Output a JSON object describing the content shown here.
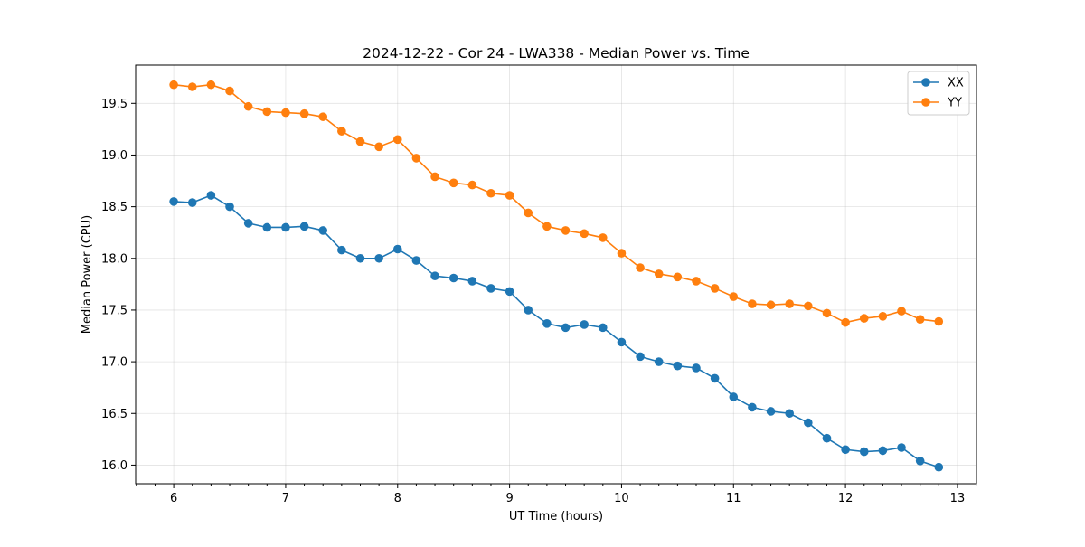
{
  "chart_data": {
    "type": "line",
    "title": "2024-12-22 - Cor 24 - LWA338 - Median Power vs. Time",
    "xlabel": "UT Time (hours)",
    "ylabel": "Median Power (CPU)",
    "xlim": [
      5.66,
      13.17
    ],
    "ylim": [
      15.82,
      19.87
    ],
    "xticks": [
      6,
      7,
      8,
      9,
      10,
      11,
      12,
      13
    ],
    "xtick_labels": [
      "6",
      "7",
      "8",
      "9",
      "10",
      "11",
      "12",
      "13"
    ],
    "yticks": [
      16.0,
      16.5,
      17.0,
      17.5,
      18.0,
      18.5,
      19.0,
      19.5
    ],
    "ytick_labels": [
      "16.0",
      "16.5",
      "17.0",
      "17.5",
      "18.0",
      "18.5",
      "19.0",
      "19.5"
    ],
    "grid": true,
    "legend_position": "top-right",
    "x": [
      6.0,
      6.1667,
      6.3333,
      6.5,
      6.6667,
      6.8333,
      7.0,
      7.1667,
      7.3333,
      7.5,
      7.6667,
      7.8333,
      8.0,
      8.1667,
      8.3333,
      8.5,
      8.6667,
      8.8333,
      9.0,
      9.1667,
      9.3333,
      9.5,
      9.6667,
      9.8333,
      10.0,
      10.1667,
      10.3333,
      10.5,
      10.6667,
      10.8333,
      11.0,
      11.1667,
      11.3333,
      11.5,
      11.6667,
      11.8333,
      12.0,
      12.1667,
      12.3333,
      12.5,
      12.6667,
      12.8333
    ],
    "series": [
      {
        "name": "XX",
        "color": "#1f77b4",
        "values": [
          18.55,
          18.54,
          18.61,
          18.5,
          18.34,
          18.3,
          18.3,
          18.31,
          18.27,
          18.08,
          18.0,
          18.0,
          18.09,
          17.98,
          17.83,
          17.81,
          17.78,
          17.71,
          17.68,
          17.5,
          17.37,
          17.33,
          17.36,
          17.33,
          17.19,
          17.05,
          17.0,
          16.96,
          16.94,
          16.84,
          16.66,
          16.56,
          16.52,
          16.5,
          16.41,
          16.26,
          16.15,
          16.13,
          16.14,
          16.17,
          16.04,
          15.98
        ]
      },
      {
        "name": "YY",
        "color": "#ff7f0e",
        "values": [
          19.68,
          19.66,
          19.68,
          19.62,
          19.47,
          19.42,
          19.41,
          19.4,
          19.37,
          19.23,
          19.13,
          19.08,
          19.15,
          18.97,
          18.79,
          18.73,
          18.71,
          18.63,
          18.61,
          18.44,
          18.31,
          18.27,
          18.24,
          18.2,
          18.05,
          17.91,
          17.85,
          17.82,
          17.78,
          17.71,
          17.63,
          17.56,
          17.55,
          17.56,
          17.54,
          17.47,
          17.38,
          17.42,
          17.44,
          17.49,
          17.41,
          17.39
        ]
      }
    ]
  }
}
